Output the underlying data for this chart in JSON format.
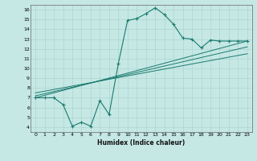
{
  "xlabel": "Humidex (Indice chaleur)",
  "bg_color": "#c5e8e5",
  "grid_color": "#aed4d0",
  "line_color": "#1a7a6e",
  "xlim": [
    -0.5,
    23.5
  ],
  "ylim": [
    3.5,
    16.5
  ],
  "xticks": [
    0,
    1,
    2,
    3,
    4,
    5,
    6,
    7,
    8,
    9,
    10,
    11,
    12,
    13,
    14,
    15,
    16,
    17,
    18,
    19,
    20,
    21,
    22,
    23
  ],
  "yticks": [
    4,
    5,
    6,
    7,
    8,
    9,
    10,
    11,
    12,
    13,
    14,
    15,
    16
  ],
  "curve1_x": [
    0,
    1,
    2,
    3,
    4,
    5,
    6,
    7,
    8,
    9,
    10,
    11,
    12,
    13,
    14,
    15,
    16,
    17,
    18,
    19,
    20,
    21,
    22,
    23
  ],
  "curve1_y": [
    7.0,
    7.0,
    7.0,
    6.3,
    4.1,
    4.5,
    4.1,
    6.7,
    5.3,
    10.5,
    14.9,
    15.1,
    15.6,
    16.2,
    15.5,
    14.5,
    13.1,
    13.0,
    12.1,
    12.9,
    12.8,
    12.8,
    12.8,
    12.8
  ],
  "trendline1_x": [
    0,
    23
  ],
  "trendline1_y": [
    7.0,
    12.8
  ],
  "trendline2_x": [
    0,
    23
  ],
  "trendline2_y": [
    7.2,
    12.2
  ],
  "trendline3_x": [
    0,
    23
  ],
  "trendline3_y": [
    7.5,
    11.5
  ]
}
